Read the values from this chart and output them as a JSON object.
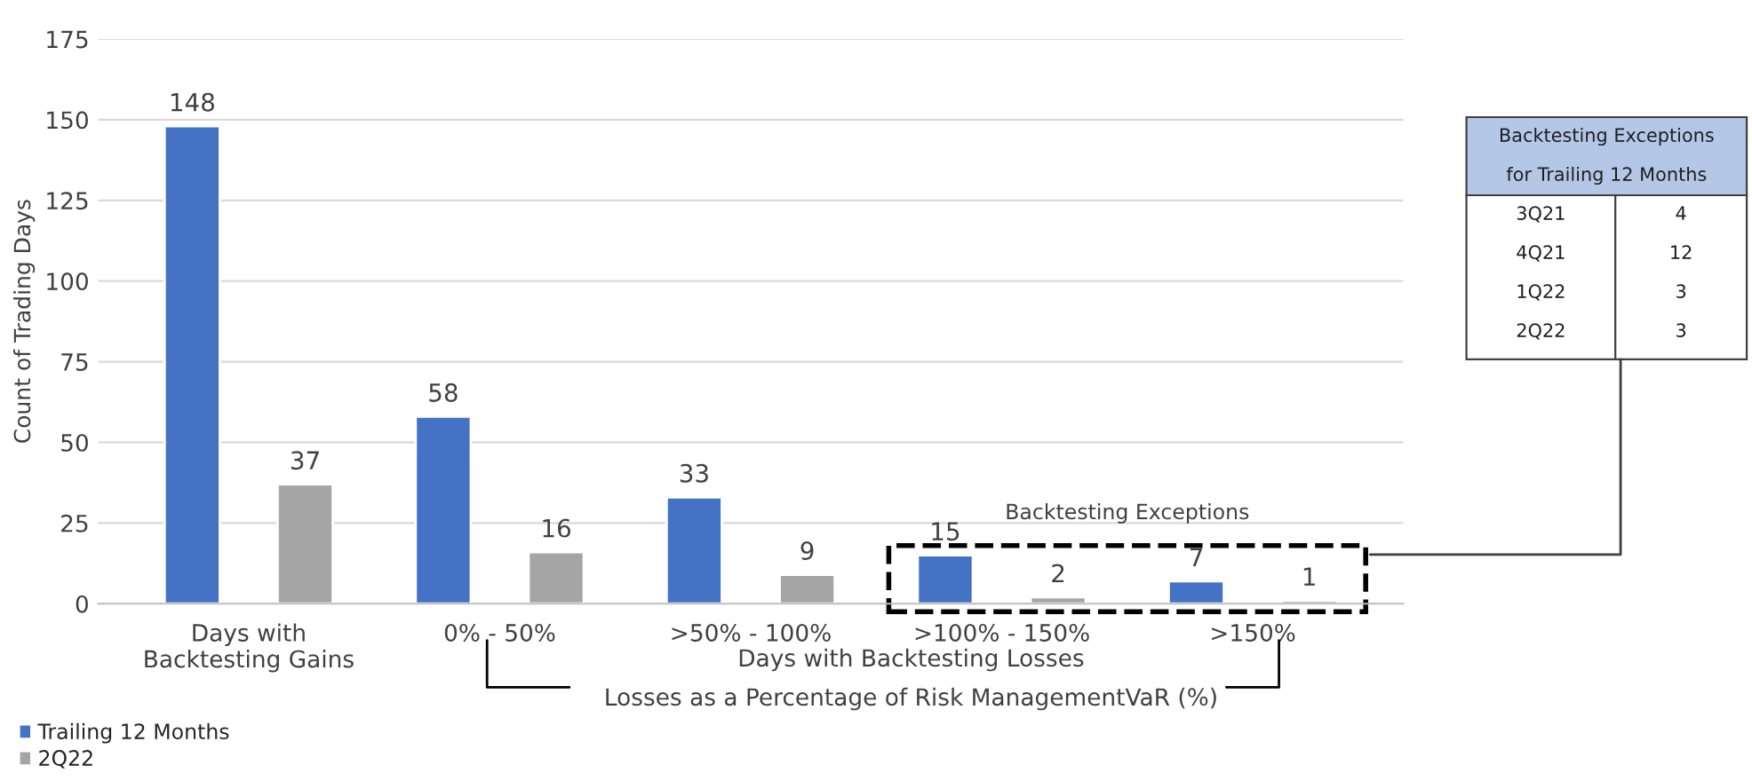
{
  "chart_data": {
    "type": "bar",
    "ylabel": "Count of Trading Days",
    "categories": [
      "Days with\nBacktesting Gains",
      "0% - 50%",
      ">50% - 100%",
      ">100% - 150%",
      ">150%"
    ],
    "series": [
      {
        "name": "Trailing 12 Months",
        "color": "#4472c4",
        "values": [
          148,
          58,
          33,
          15,
          7
        ]
      },
      {
        "name": "2Q22",
        "color": "#a5a5a5",
        "values": [
          37,
          16,
          9,
          2,
          1
        ]
      }
    ],
    "ylim": [
      0,
      175
    ],
    "yticks": [
      0,
      25,
      50,
      75,
      100,
      125,
      150,
      175
    ],
    "grid": "y",
    "data_labels": true,
    "legend": "bottom left",
    "annotations": [
      "Backtesting Exceptions",
      "Days with Backtesting Losses",
      "Losses as a Percentage of Risk ManagementVaR (%)",
      "Backtesting Exceptions",
      "for Trailing 12 Months",
      "3Q21",
      "4",
      "4Q21",
      "12",
      "1Q22",
      "3",
      "2Q22",
      "3"
    ]
  }
}
